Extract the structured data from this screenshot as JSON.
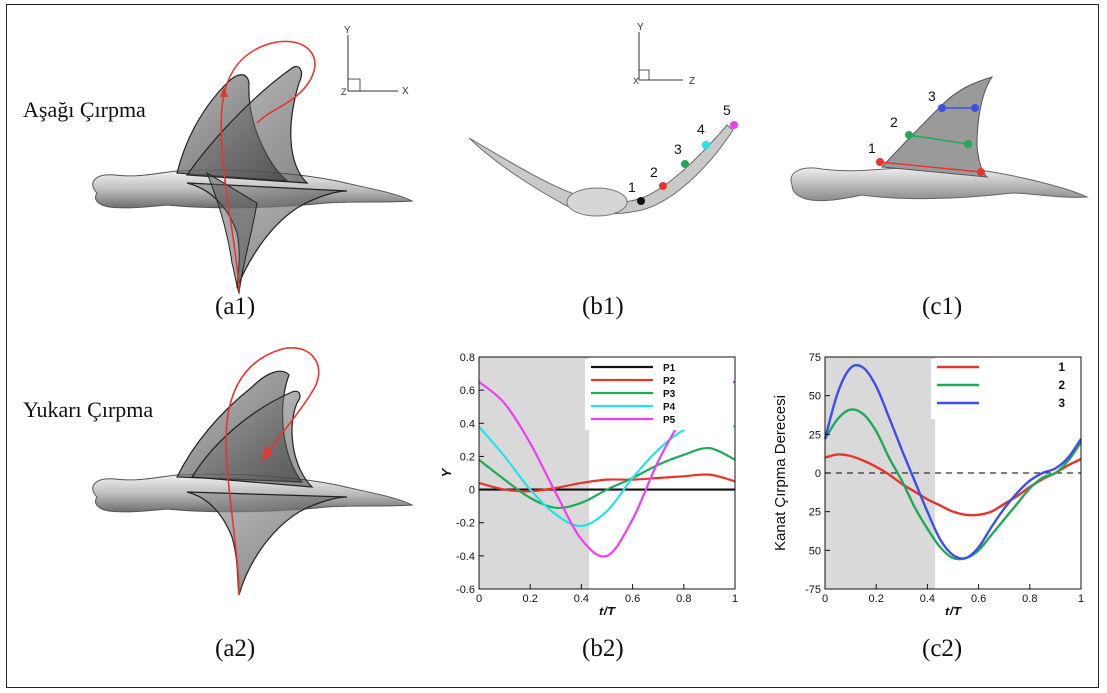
{
  "figure": {
    "labels": {
      "down_stroke": "Aşağı  Çırpma",
      "up_stroke": "Yukarı Çırpma"
    },
    "captions": {
      "a1": "(a1)",
      "b1": "(b1)",
      "c1": "(c1)",
      "a2": "(a2)",
      "b2": "(b2)",
      "c2": "(c2)"
    },
    "axes_triads": {
      "a1": {
        "y": "Y",
        "x": "X",
        "z": "Z"
      },
      "b1": {
        "y": "Y",
        "z": "Z",
        "x": "X"
      }
    },
    "b1_points": [
      "1",
      "2",
      "3",
      "4",
      "5"
    ],
    "c1_points": [
      "1",
      "2",
      "3"
    ],
    "colors": {
      "red": "#e8342f",
      "green": "#22a85a",
      "cyan": "#22e3e8",
      "magenta": "#f03ef0",
      "blue": "#3d4fe6",
      "black": "#111111",
      "shade": "#d9d9d9"
    }
  },
  "chart_data": [
    {
      "id": "b2",
      "type": "line",
      "xlabel": "t/T",
      "ylabel": "Y",
      "xlim": [
        0,
        1
      ],
      "ylim": [
        -0.6,
        0.8
      ],
      "xticks": [
        "0",
        "0.2",
        "0.4",
        "0.6",
        "0.8",
        "1"
      ],
      "yticks": [
        "-0.6",
        "-0.4",
        "-0.2",
        "0",
        "0.2",
        "0.4",
        "0.6",
        "0.8"
      ],
      "shaded_region": [
        0,
        0.43
      ],
      "legend_position": "top-right",
      "x": [
        0,
        0.1,
        0.2,
        0.3,
        0.4,
        0.5,
        0.6,
        0.7,
        0.8,
        0.9,
        1.0
      ],
      "series": [
        {
          "name": "P1",
          "color": "#111111",
          "values": [
            0.0,
            0.0,
            0.0,
            0.0,
            0.0,
            0.0,
            0.0,
            0.0,
            0.0,
            0.0,
            0.0
          ]
        },
        {
          "name": "P2",
          "color": "#e8342f",
          "values": [
            0.04,
            0.0,
            -0.01,
            0.01,
            0.04,
            0.06,
            0.06,
            0.07,
            0.08,
            0.09,
            0.05
          ]
        },
        {
          "name": "P3",
          "color": "#22a85a",
          "values": [
            0.18,
            0.06,
            -0.05,
            -0.11,
            -0.08,
            0.0,
            0.07,
            0.15,
            0.21,
            0.25,
            0.18
          ]
        },
        {
          "name": "P4",
          "color": "#22e3e8",
          "values": [
            0.38,
            0.2,
            0.0,
            -0.15,
            -0.22,
            -0.13,
            0.07,
            0.24,
            0.36,
            0.41,
            0.38
          ]
        },
        {
          "name": "P5",
          "color": "#f03ef0",
          "values": [
            0.65,
            0.52,
            0.28,
            -0.02,
            -0.3,
            -0.4,
            -0.18,
            0.17,
            0.44,
            0.61,
            0.65
          ]
        }
      ]
    },
    {
      "id": "c2",
      "type": "line",
      "xlabel": "t/T",
      "ylabel": "Kanat Çırpma Derecesi",
      "xlim": [
        0,
        1
      ],
      "ylim": [
        -75,
        75
      ],
      "xticks": [
        "0",
        "0.2",
        "0.4",
        "0.6",
        "0.8",
        "1"
      ],
      "yticks": [
        "-75",
        "50",
        "25",
        "0",
        "25",
        "50",
        "75"
      ],
      "shaded_region": [
        0,
        0.43
      ],
      "zero_line": "dashed",
      "legend_position": "top-right",
      "x": [
        0,
        0.05,
        0.1,
        0.15,
        0.2,
        0.25,
        0.3,
        0.35,
        0.4,
        0.45,
        0.5,
        0.55,
        0.6,
        0.65,
        0.7,
        0.75,
        0.8,
        0.85,
        0.9,
        0.95,
        1.0
      ],
      "series": [
        {
          "name": "1",
          "color": "#e8342f",
          "values": [
            10,
            12,
            11,
            8,
            4,
            -1,
            -7,
            -12,
            -17,
            -21,
            -25,
            -27,
            -27,
            -25,
            -20,
            -15,
            -9,
            -4,
            0,
            5,
            9
          ]
        },
        {
          "name": "2",
          "color": "#22a85a",
          "values": [
            22,
            35,
            41,
            38,
            27,
            10,
            -5,
            -22,
            -36,
            -48,
            -55,
            -55,
            -50,
            -40,
            -30,
            -20,
            -10,
            -3,
            0,
            8,
            20
          ]
        },
        {
          "name": "3",
          "color": "#3d4fe6",
          "values": [
            22,
            52,
            68,
            68,
            56,
            36,
            15,
            -5,
            -25,
            -43,
            -53,
            -55,
            -48,
            -35,
            -23,
            -13,
            -5,
            0,
            3,
            10,
            22
          ]
        }
      ]
    }
  ]
}
